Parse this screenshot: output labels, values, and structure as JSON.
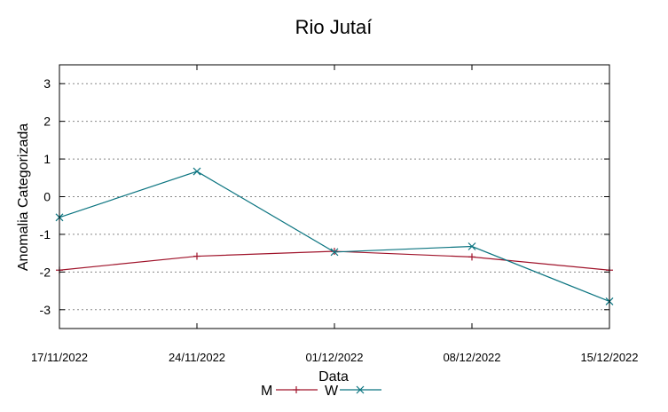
{
  "chart_data": {
    "type": "line",
    "title": "Rio Jutaí",
    "xlabel": "Data",
    "ylabel": "Anomalia Categorizada",
    "x": [
      "17/11/2022",
      "24/11/2022",
      "01/12/2022",
      "08/12/2022",
      "15/12/2022"
    ],
    "yticks": [
      3,
      2,
      1,
      0,
      -1,
      -2,
      -3
    ],
    "ylim": [
      -3.5,
      3.5
    ],
    "grid": true,
    "legend_position": "bottom",
    "series": [
      {
        "name": "M",
        "color": "#a0142b",
        "marker": "plus",
        "values": [
          -1.95,
          -1.58,
          -1.45,
          -1.6,
          -1.95
        ]
      },
      {
        "name": "W",
        "color": "#0b7480",
        "marker": "cross",
        "values": [
          -0.55,
          0.67,
          -1.47,
          -1.32,
          -2.78
        ]
      }
    ]
  }
}
